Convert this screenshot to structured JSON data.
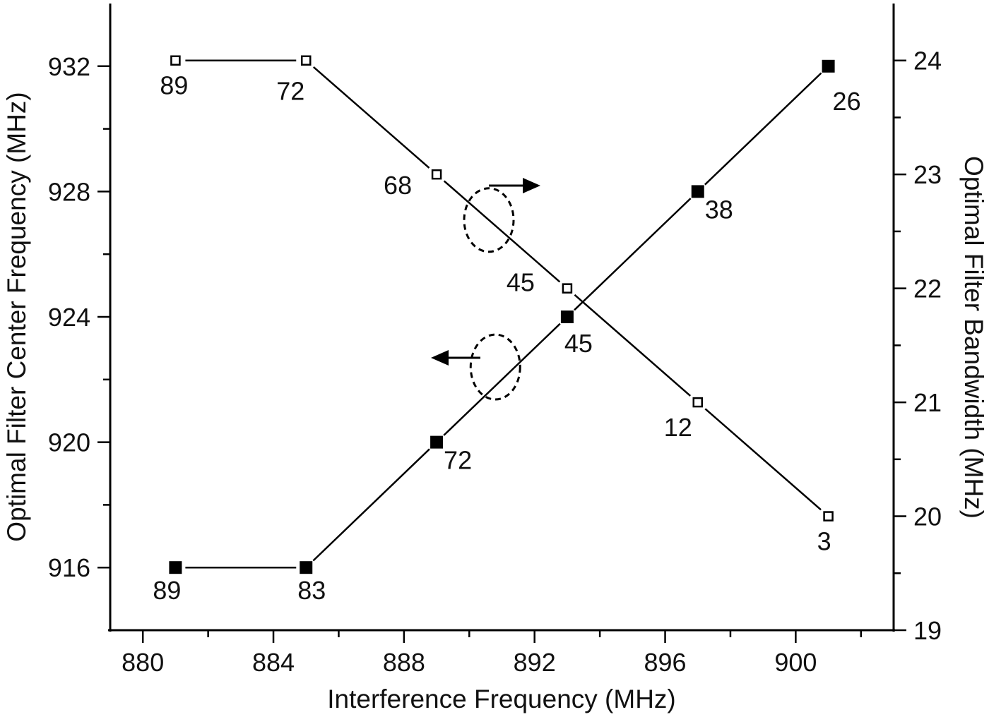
{
  "chart_data": {
    "type": "line",
    "title": "",
    "xlabel": "Interference Frequency (MHz)",
    "ylabel_left": "Optimal Filter Center Frequency (MHz)",
    "ylabel_right": "Optimal Filter Bandwidth (MHz)",
    "xlim": [
      879,
      903
    ],
    "ylim_left": [
      914,
      934
    ],
    "ylim_right": [
      19,
      24.5
    ],
    "x_ticks": [
      880,
      884,
      888,
      892,
      896,
      900
    ],
    "x_tick_labels": [
      "880",
      "884",
      "888",
      "892",
      "896",
      "900"
    ],
    "y_left_ticks": [
      916,
      920,
      924,
      928,
      932
    ],
    "y_left_tick_labels": [
      "916",
      "920",
      "924",
      "928",
      "932"
    ],
    "y_right_ticks": [
      19,
      20,
      21,
      22,
      23,
      24
    ],
    "y_right_tick_labels": [
      "19",
      "20",
      "21",
      "22",
      "23",
      "24"
    ],
    "grid": false,
    "x": [
      881,
      885,
      889,
      893,
      897,
      901
    ],
    "series": [
      {
        "name": "Optimal Filter Center Frequency",
        "axis": "left",
        "marker": "filled-square",
        "color": "#000000",
        "values": [
          916,
          916,
          920,
          924,
          928,
          932
        ],
        "point_labels": [
          "89",
          "83",
          "72",
          "45",
          "38",
          "26"
        ]
      },
      {
        "name": "Optimal Filter Bandwidth",
        "axis": "right",
        "marker": "open-square",
        "color": "#000000",
        "values": [
          24,
          24,
          23,
          22,
          21,
          20
        ],
        "point_labels": [
          "89",
          "72",
          "68",
          "45",
          "12",
          "3"
        ]
      }
    ],
    "annotations": [
      "dashed ellipse with arrow pointing right (bandwidth series -> right axis)",
      "dashed ellipse with arrow pointing left (center frequency series -> left axis)"
    ]
  }
}
